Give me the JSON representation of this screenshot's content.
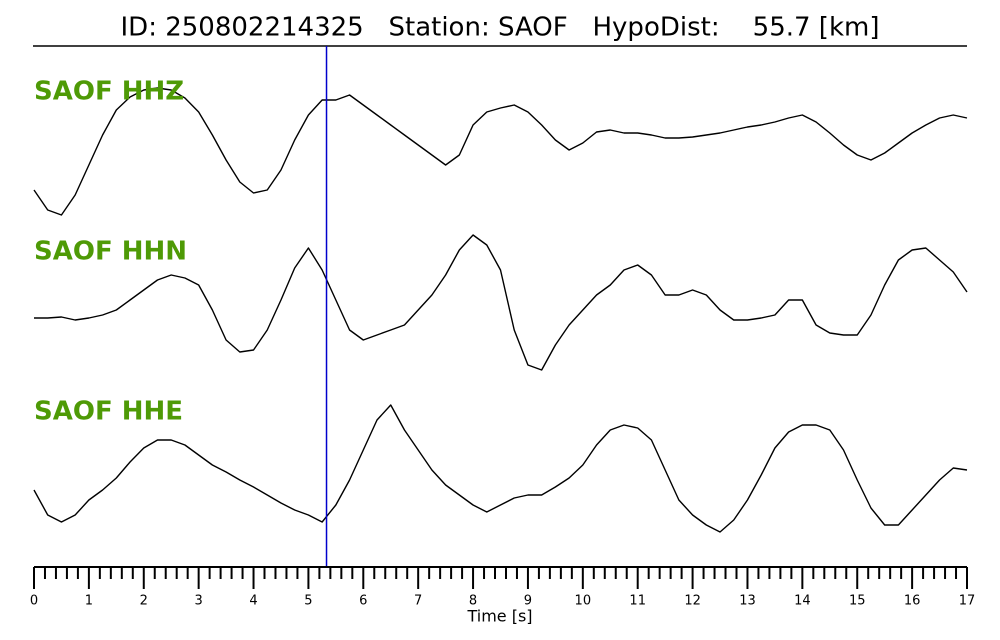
{
  "chart_data": {
    "type": "line",
    "title": "ID: 250802214325   Station: SAOF   HypoDist:    55.7 [km]",
    "xlabel": "Time [s]",
    "x": [
      0,
      0.25,
      0.5,
      0.75,
      1,
      1.25,
      1.5,
      1.75,
      2,
      2.25,
      2.5,
      2.75,
      3,
      3.25,
      3.5,
      3.75,
      4,
      4.25,
      4.5,
      4.75,
      5,
      5.25,
      5.5,
      5.75,
      6,
      6.25,
      6.5,
      6.75,
      7,
      7.25,
      7.5,
      7.75,
      8,
      8.25,
      8.5,
      8.75,
      9,
      9.25,
      9.5,
      9.75,
      10,
      10.25,
      10.5,
      10.75,
      11,
      11.25,
      11.5,
      11.75,
      12,
      12.25,
      12.5,
      12.75,
      13,
      13.25,
      13.5,
      13.75,
      14,
      14.25,
      14.5,
      14.75,
      15,
      15.25,
      15.5,
      15.75,
      16,
      16.25,
      16.5,
      16.75,
      17
    ],
    "series": [
      {
        "name": "SAOF HHZ",
        "color": "#000000",
        "label_color": "#4e9a06",
        "values": [
          -40,
          -60,
          -65,
          -45,
          -15,
          15,
          40,
          53,
          60,
          62,
          60,
          52,
          38,
          15,
          -10,
          -32,
          -43,
          -40,
          -20,
          10,
          35,
          50,
          50,
          55,
          45,
          35,
          25,
          15,
          5,
          -5,
          -15,
          -5,
          25,
          38,
          42,
          45,
          38,
          25,
          10,
          0,
          7,
          18,
          20,
          17,
          17,
          15,
          12,
          12,
          13,
          15,
          17,
          20,
          23,
          25,
          28,
          32,
          35,
          28,
          17,
          5,
          -5,
          -10,
          -3,
          7,
          17,
          25,
          32,
          35,
          32
        ]
      },
      {
        "name": "SAOF HHN",
        "color": "#000000",
        "label_color": "#4e9a06",
        "values": [
          -8,
          -8,
          -7,
          -10,
          -8,
          -5,
          0,
          10,
          20,
          30,
          35,
          32,
          25,
          0,
          -30,
          -42,
          -40,
          -20,
          10,
          42,
          62,
          40,
          10,
          -20,
          -30,
          -25,
          -20,
          -15,
          0,
          15,
          35,
          60,
          75,
          65,
          40,
          -20,
          -55,
          -60,
          -35,
          -15,
          0,
          15,
          25,
          40,
          45,
          35,
          15,
          15,
          20,
          15,
          0,
          -10,
          -10,
          -8,
          -5,
          10,
          10,
          -15,
          -23,
          -25,
          -25,
          -5,
          25,
          50,
          60,
          62,
          50,
          38,
          18
        ]
      },
      {
        "name": "SAOF HHE",
        "color": "#000000",
        "label_color": "#4e9a06",
        "values": [
          -20,
          -45,
          -52,
          -45,
          -30,
          -20,
          -8,
          8,
          22,
          30,
          30,
          25,
          15,
          5,
          -2,
          -10,
          -17,
          -25,
          -33,
          -40,
          -45,
          -52,
          -35,
          -10,
          20,
          50,
          65,
          40,
          20,
          0,
          -15,
          -25,
          -35,
          -42,
          -35,
          -28,
          -25,
          -25,
          -17,
          -8,
          5,
          25,
          40,
          45,
          42,
          30,
          0,
          -30,
          -45,
          -55,
          -62,
          -50,
          -30,
          -5,
          22,
          38,
          45,
          45,
          40,
          20,
          -10,
          -38,
          -55,
          -55,
          -40,
          -25,
          -10,
          2,
          0
        ]
      }
    ],
    "ylim": [
      -80,
      80
    ],
    "xlim": [
      0,
      17
    ],
    "xticks": [
      0,
      1,
      2,
      3,
      4,
      5,
      6,
      7,
      8,
      9,
      10,
      11,
      12,
      13,
      14,
      15,
      16,
      17
    ],
    "xminorticks": [
      0.2,
      0.4,
      0.6,
      0.8,
      1.2,
      1.4,
      1.6,
      1.8,
      2.2,
      2.4,
      2.6,
      2.8,
      3.2,
      3.4,
      3.6,
      3.8,
      4.2,
      4.4,
      4.6,
      4.8,
      5.2,
      5.4,
      5.6,
      5.8,
      6.2,
      6.4,
      6.6,
      6.8,
      7.2,
      7.4,
      7.6,
      7.8,
      8.2,
      8.4,
      8.6,
      8.8,
      9.2,
      9.4,
      9.6,
      9.8,
      10.2,
      10.4,
      10.6,
      10.8,
      11.2,
      11.4,
      11.6,
      11.8,
      12.2,
      12.4,
      12.6,
      12.8,
      13.2,
      13.4,
      13.6,
      13.8,
      14.2,
      14.4,
      14.6,
      14.8,
      15.2,
      15.4,
      15.6,
      15.8,
      16.2,
      16.4,
      16.6,
      16.8
    ],
    "pick": 5.33,
    "pick_color": "#0000cc"
  }
}
